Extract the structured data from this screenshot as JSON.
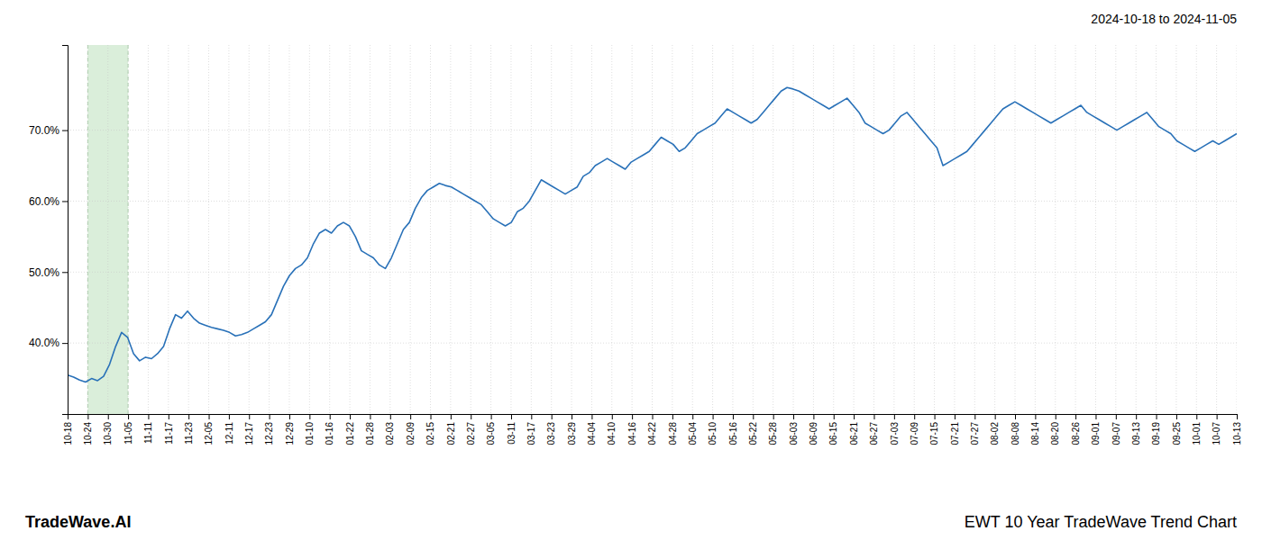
{
  "chart_data": {
    "type": "line",
    "title": "2024-10-18 to 2024-11-05",
    "annotations": [
      "TradeWave.AI",
      "EWT 10 Year TradeWave Trend Chart"
    ],
    "color": "#2971b8",
    "grid": true,
    "highlight": {
      "xlim": [
        3.362069,
        10.086207
      ],
      "color": "#daeeda"
    },
    "xlim": [
      0,
      195
    ],
    "xticks": [
      {
        "value": 0,
        "label": "10-18"
      },
      {
        "value": 3.362069,
        "label": "10-24"
      },
      {
        "value": 6.724138,
        "label": "10-30"
      },
      {
        "value": 10.086207,
        "label": "11-05"
      },
      {
        "value": 13.448276,
        "label": "11-11"
      },
      {
        "value": 16.810345,
        "label": "11-17"
      },
      {
        "value": 20.172414,
        "label": "11-23"
      },
      {
        "value": 23.534483,
        "label": "12-05"
      },
      {
        "value": 26.896552,
        "label": "12-11"
      },
      {
        "value": 30.258621,
        "label": "12-17"
      },
      {
        "value": 33.62069,
        "label": "12-23"
      },
      {
        "value": 36.982759,
        "label": "12-29"
      },
      {
        "value": 40.344828,
        "label": "01-10"
      },
      {
        "value": 43.706897,
        "label": "01-16"
      },
      {
        "value": 47.068966,
        "label": "01-22"
      },
      {
        "value": 50.431034,
        "label": "01-28"
      },
      {
        "value": 53.793103,
        "label": "02-03"
      },
      {
        "value": 57.155172,
        "label": "02-09"
      },
      {
        "value": 60.517241,
        "label": "02-15"
      },
      {
        "value": 63.87931,
        "label": "02-21"
      },
      {
        "value": 67.241379,
        "label": "02-27"
      },
      {
        "value": 70.603448,
        "label": "03-05"
      },
      {
        "value": 73.965517,
        "label": "03-11"
      },
      {
        "value": 77.327586,
        "label": "03-17"
      },
      {
        "value": 80.689655,
        "label": "03-23"
      },
      {
        "value": 84.051724,
        "label": "03-29"
      },
      {
        "value": 87.413793,
        "label": "04-04"
      },
      {
        "value": 90.775862,
        "label": "04-10"
      },
      {
        "value": 94.137931,
        "label": "04-16"
      },
      {
        "value": 97.5,
        "label": "04-22"
      },
      {
        "value": 100.862069,
        "label": "04-28"
      },
      {
        "value": 104.224138,
        "label": "05-04"
      },
      {
        "value": 107.586207,
        "label": "05-10"
      },
      {
        "value": 110.948276,
        "label": "05-16"
      },
      {
        "value": 114.310345,
        "label": "05-22"
      },
      {
        "value": 117.672414,
        "label": "05-28"
      },
      {
        "value": 121.034483,
        "label": "06-03"
      },
      {
        "value": 124.396552,
        "label": "06-09"
      },
      {
        "value": 127.758621,
        "label": "06-15"
      },
      {
        "value": 131.12069,
        "label": "06-21"
      },
      {
        "value": 134.482759,
        "label": "06-27"
      },
      {
        "value": 137.844828,
        "label": "07-03"
      },
      {
        "value": 141.206897,
        "label": "07-09"
      },
      {
        "value": 144.568966,
        "label": "07-15"
      },
      {
        "value": 147.931034,
        "label": "07-21"
      },
      {
        "value": 151.293103,
        "label": "07-27"
      },
      {
        "value": 154.655172,
        "label": "08-02"
      },
      {
        "value": 158.017241,
        "label": "08-08"
      },
      {
        "value": 161.37931,
        "label": "08-14"
      },
      {
        "value": 164.741379,
        "label": "08-20"
      },
      {
        "value": 168.103448,
        "label": "08-26"
      },
      {
        "value": 171.465517,
        "label": "09-01"
      },
      {
        "value": 174.827586,
        "label": "09-07"
      },
      {
        "value": 178.189655,
        "label": "09-13"
      },
      {
        "value": 181.551724,
        "label": "09-19"
      },
      {
        "value": 184.913793,
        "label": "09-25"
      },
      {
        "value": 188.275862,
        "label": "10-01"
      },
      {
        "value": 191.637931,
        "label": "10-07"
      },
      {
        "value": 195,
        "label": "10-13"
      }
    ],
    "ylim": [
      30.0,
      82.0
    ],
    "yticks": [
      {
        "value": 40.0,
        "label": "40.0%"
      },
      {
        "value": 50.0,
        "label": "50.0%"
      },
      {
        "value": 60.0,
        "label": "60.0%"
      },
      {
        "value": 70.0,
        "label": "70.0%"
      }
    ],
    "x": [
      0,
      1,
      2,
      3,
      4,
      5,
      6,
      7,
      8,
      9,
      10,
      11,
      12,
      13,
      14,
      15,
      16,
      17,
      18,
      19,
      20,
      21,
      22,
      23,
      24,
      25,
      26,
      27,
      28,
      29,
      30,
      31,
      32,
      33,
      34,
      35,
      36,
      37,
      38,
      39,
      40,
      41,
      42,
      43,
      44,
      45,
      46,
      47,
      48,
      49,
      50,
      51,
      52,
      53,
      54,
      55,
      56,
      57,
      58,
      59,
      60,
      61,
      62,
      63,
      64,
      65,
      66,
      67,
      68,
      69,
      70,
      71,
      72,
      73,
      74,
      75,
      76,
      77,
      78,
      79,
      80,
      81,
      82,
      83,
      84,
      85,
      86,
      87,
      88,
      89,
      90,
      91,
      92,
      93,
      94,
      95,
      96,
      97,
      98,
      99,
      100,
      101,
      102,
      103,
      104,
      105,
      106,
      107,
      108,
      109,
      110,
      111,
      112,
      113,
      114,
      115,
      116,
      117,
      118,
      119,
      120,
      121,
      122,
      123,
      124,
      125,
      126,
      127,
      128,
      129,
      130,
      131,
      132,
      133,
      134,
      135,
      136,
      137,
      138,
      139,
      140,
      141,
      142,
      143,
      144,
      145,
      146,
      147,
      148,
      149,
      150,
      151,
      152,
      153,
      154,
      155,
      156,
      157,
      158,
      159,
      160,
      161,
      162,
      163,
      164,
      165,
      166,
      167,
      168,
      169,
      170,
      171,
      172,
      173,
      174,
      175,
      176,
      177,
      178,
      179,
      180,
      181,
      182,
      183,
      184,
      185,
      186,
      187,
      188,
      189,
      190,
      191,
      192,
      193,
      194,
      195
    ],
    "values": [
      35.5,
      35.2,
      34.8,
      34.5,
      35.0,
      34.7,
      35.3,
      37.0,
      39.5,
      41.5,
      40.8,
      38.5,
      37.5,
      38.0,
      37.8,
      38.5,
      39.5,
      42.0,
      44.0,
      43.5,
      44.5,
      43.5,
      42.8,
      42.5,
      42.2,
      42.0,
      41.8,
      41.5,
      41.0,
      41.2,
      41.5,
      42.0,
      42.5,
      43.0,
      44.0,
      46.0,
      48.0,
      49.5,
      50.5,
      51.0,
      52.0,
      54.0,
      55.5,
      56.0,
      55.5,
      56.5,
      57.0,
      56.5,
      55.0,
      53.0,
      52.5,
      52.0,
      51.0,
      50.5,
      52.0,
      54.0,
      56.0,
      57.0,
      59.0,
      60.5,
      61.5,
      62.0,
      62.5,
      62.2,
      62.0,
      61.5,
      61.0,
      60.5,
      60.0,
      59.5,
      58.5,
      57.5,
      57.0,
      56.5,
      57.0,
      58.5,
      59.0,
      60.0,
      61.5,
      63.0,
      62.5,
      62.0,
      61.5,
      61.0,
      61.5,
      62.0,
      63.5,
      64.0,
      65.0,
      65.5,
      66.0,
      65.5,
      65.0,
      64.5,
      65.5,
      66.0,
      66.5,
      67.0,
      68.0,
      69.0,
      68.5,
      68.0,
      67.0,
      67.5,
      68.5,
      69.5,
      70.0,
      70.5,
      71.0,
      72.0,
      73.0,
      72.5,
      72.0,
      71.5,
      71.0,
      71.5,
      72.5,
      73.5,
      74.5,
      75.5,
      76.0,
      75.8,
      75.5,
      75.0,
      74.5,
      74.0,
      73.5,
      73.0,
      73.5,
      74.0,
      74.5,
      73.5,
      72.5,
      71.0,
      70.5,
      70.0,
      69.5,
      70.0,
      71.0,
      72.0,
      72.5,
      71.5,
      70.5,
      69.5,
      68.5,
      67.5,
      65.0,
      65.5,
      66.0,
      66.5,
      67.0,
      68.0,
      69.0,
      70.0,
      71.0,
      72.0,
      73.0,
      73.5,
      74.0,
      73.5,
      73.0,
      72.5,
      72.0,
      71.5,
      71.0,
      71.5,
      72.0,
      72.5,
      73.0,
      73.5,
      72.5,
      72.0,
      71.5,
      71.0,
      70.5,
      70.0,
      70.5,
      71.0,
      71.5,
      72.0,
      72.5,
      71.5,
      70.5,
      70.0,
      69.5,
      68.5,
      68.0,
      67.5,
      67.0,
      67.5,
      68.0,
      68.5,
      68.0,
      68.5,
      69.0,
      69.5
    ]
  }
}
